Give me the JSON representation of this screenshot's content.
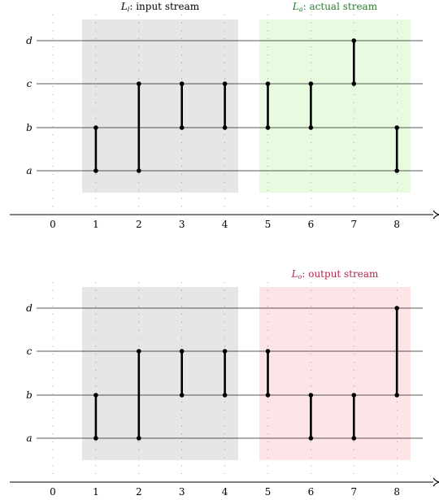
{
  "panels": [
    {
      "left_region": {
        "label_var": "L",
        "label_sub": "i",
        "label_rest": ": input stream",
        "fill": "#e6e6e6",
        "label_color": "#000000"
      },
      "right_region": {
        "label_var": "L",
        "label_sub": "a",
        "label_rest": ": actual stream",
        "fill": "#e8fbe0",
        "label_color": "#2e7d32"
      },
      "levels": [
        "a",
        "b",
        "c",
        "d"
      ],
      "ticks": [
        "0",
        "1",
        "2",
        "3",
        "4",
        "5",
        "6",
        "7",
        "8"
      ],
      "segments": [
        {
          "t": 1,
          "from": "a",
          "to": "b"
        },
        {
          "t": 2,
          "from": "a",
          "to": "c"
        },
        {
          "t": 3,
          "from": "b",
          "to": "c"
        },
        {
          "t": 4,
          "from": "b",
          "to": "c"
        },
        {
          "t": 5,
          "from": "b",
          "to": "c"
        },
        {
          "t": 6,
          "from": "b",
          "to": "c"
        },
        {
          "t": 7,
          "from": "c",
          "to": "d"
        },
        {
          "t": 8,
          "from": "a",
          "to": "b"
        }
      ]
    },
    {
      "left_region": {
        "label_var": "",
        "label_sub": "",
        "label_rest": "",
        "fill": "#e6e6e6",
        "label_color": "#000000"
      },
      "right_region": {
        "label_var": "L",
        "label_sub": "o",
        "label_rest": ": output stream",
        "fill": "#fde4e6",
        "label_color": "#b0264a"
      },
      "levels": [
        "a",
        "b",
        "c",
        "d"
      ],
      "ticks": [
        "0",
        "1",
        "2",
        "3",
        "4",
        "5",
        "6",
        "7",
        "8"
      ],
      "segments": [
        {
          "t": 1,
          "from": "a",
          "to": "b"
        },
        {
          "t": 2,
          "from": "a",
          "to": "c"
        },
        {
          "t": 3,
          "from": "b",
          "to": "c"
        },
        {
          "t": 4,
          "from": "b",
          "to": "c"
        },
        {
          "t": 5,
          "from": "b",
          "to": "c"
        },
        {
          "t": 6,
          "from": "a",
          "to": "b"
        },
        {
          "t": 7,
          "from": "a",
          "to": "b"
        },
        {
          "t": 8,
          "from": "b",
          "to": "d"
        }
      ]
    }
  ]
}
